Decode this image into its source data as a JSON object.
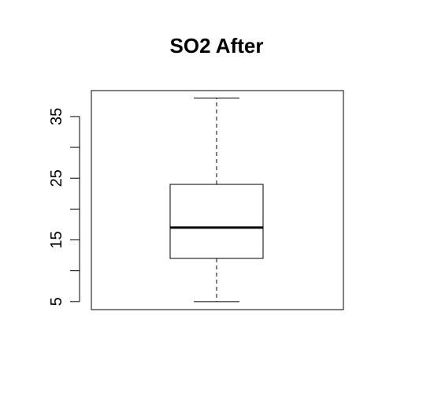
{
  "chart_data": {
    "type": "boxplot",
    "title": "SO2 After",
    "xlabel": "",
    "ylabel": "",
    "ylim": [
      3.7,
      39.2
    ],
    "yticks": [
      5,
      10,
      15,
      20,
      25,
      30,
      35
    ],
    "ytick_labels": [
      "5",
      "",
      "15",
      "",
      "25",
      "",
      "35"
    ],
    "box": {
      "whisker_low": 5,
      "q1": 12,
      "median": 17,
      "q3": 24,
      "whisker_high": 38
    },
    "grid": false,
    "colors": {
      "stroke": "#000000",
      "background": "#ffffff"
    }
  }
}
